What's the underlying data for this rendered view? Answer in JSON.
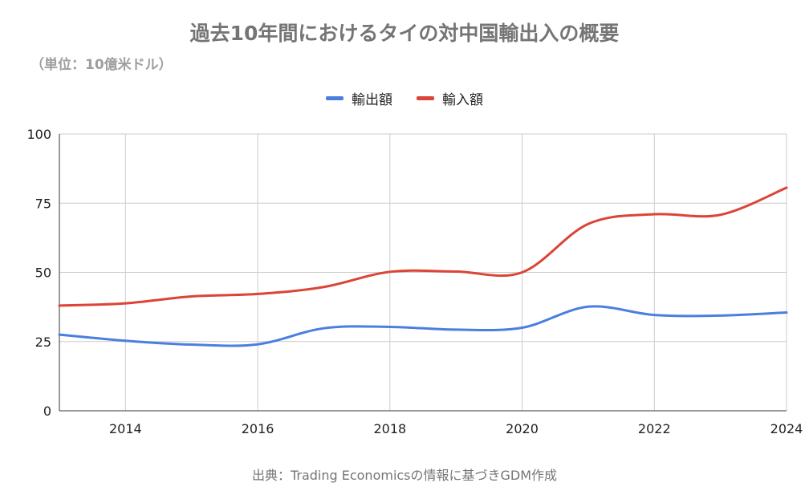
{
  "chart_data": {
    "type": "line",
    "title": "過去10年間におけるタイの対中国輸出入の概要",
    "subtitle": "（単位：10億米ドル）",
    "x": [
      2013,
      2014,
      2015,
      2016,
      2017,
      2018,
      2019,
      2020,
      2021,
      2022,
      2023,
      2024
    ],
    "x_ticks": [
      2014,
      2016,
      2018,
      2020,
      2022,
      2024
    ],
    "xlim": [
      2013,
      2024
    ],
    "ylim": [
      0,
      100
    ],
    "y_ticks": [
      0,
      25,
      50,
      75,
      100
    ],
    "grid": true,
    "legend_position": "top",
    "series": [
      {
        "name": "輸出額",
        "color": "#4a7fe0",
        "values": [
          27.5,
          25.3,
          23.9,
          24.0,
          29.8,
          30.3,
          29.3,
          30.0,
          37.6,
          34.6,
          34.4,
          35.5
        ]
      },
      {
        "name": "輸入額",
        "color": "#db4437",
        "values": [
          38.0,
          38.8,
          41.3,
          42.2,
          44.7,
          50.2,
          50.3,
          50.0,
          67.5,
          71.0,
          70.8,
          80.6
        ]
      }
    ],
    "source": "出典：Trading Economicsの情報に基づきGDM作成"
  }
}
